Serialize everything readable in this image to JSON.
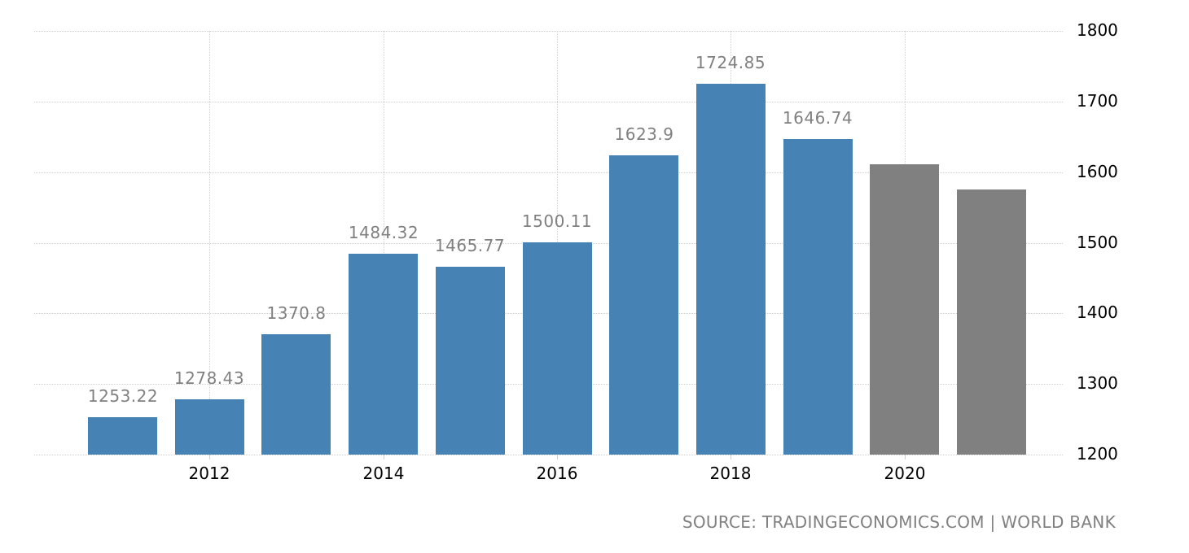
{
  "chart_data": {
    "type": "bar",
    "title": "",
    "xlabel": "",
    "ylabel": "",
    "ylim": [
      1200,
      1800
    ],
    "grid": true,
    "y_axis_position": "right",
    "yticks": [
      1200,
      1300,
      1400,
      1500,
      1600,
      1700,
      1800
    ],
    "xticks": [
      "2012",
      "2014",
      "2016",
      "2018",
      "2020"
    ],
    "categories": [
      "2011",
      "2012",
      "2013",
      "2014",
      "2015",
      "2016",
      "2017",
      "2018",
      "2019",
      "2020",
      "2021"
    ],
    "values": [
      1253.22,
      1278.43,
      1370.8,
      1484.32,
      1465.77,
      1500.11,
      1623.9,
      1724.85,
      1646.74,
      1611,
      1575
    ],
    "data_labels": [
      "1253.22",
      "1278.43",
      "1370.8",
      "1484.32",
      "1465.77",
      "1500.11",
      "1623.9",
      "1724.85",
      "1646.74",
      "",
      ""
    ],
    "bar_types": [
      "actual",
      "actual",
      "actual",
      "actual",
      "actual",
      "actual",
      "actual",
      "actual",
      "actual",
      "forecast",
      "forecast"
    ],
    "colors": {
      "actual": "#4682b4",
      "forecast": "#808080",
      "label": "#808080",
      "grid": "#cfcfcf"
    },
    "source": "SOURCE: TRADINGECONOMICS.COM | WORLD BANK"
  }
}
